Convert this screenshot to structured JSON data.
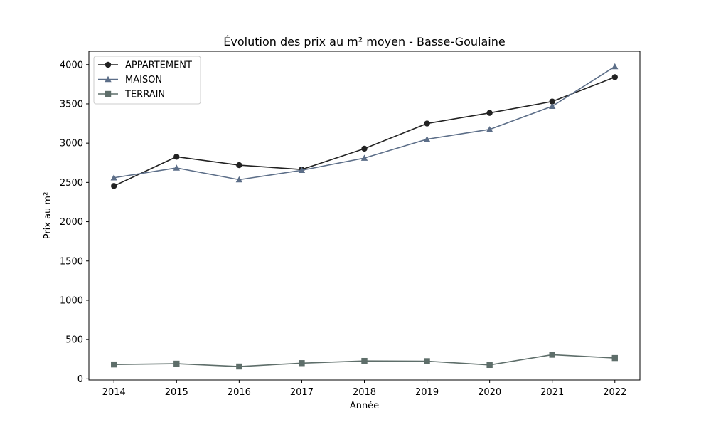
{
  "chart_data": {
    "type": "line",
    "title": "Évolution des prix au m² moyen - Basse-Goulaine",
    "xlabel": "Année",
    "ylabel": "Prix au m²",
    "x": [
      2014,
      2015,
      2016,
      2017,
      2018,
      2019,
      2020,
      2021,
      2022
    ],
    "xlim": [
      2013.6,
      2022.4
    ],
    "ylim": [
      -15,
      4170
    ],
    "yticks": [
      0,
      500,
      1000,
      1500,
      2000,
      2500,
      3000,
      3500,
      4000
    ],
    "grid": false,
    "legend_position": "top-left",
    "series": [
      {
        "name": "APPARTEMENT",
        "color": "#222222",
        "marker": "circle",
        "values": [
          2455,
          2827,
          2720,
          2665,
          2930,
          3250,
          3385,
          3530,
          3840
        ]
      },
      {
        "name": "MAISON",
        "color": "#5c6e88",
        "marker": "triangle",
        "values": [
          2560,
          2685,
          2535,
          2655,
          2810,
          3050,
          3175,
          3470,
          3975
        ]
      },
      {
        "name": "TERRAIN",
        "color": "#5e6e6a",
        "marker": "square",
        "values": [
          183,
          193,
          157,
          200,
          228,
          225,
          177,
          307,
          265
        ]
      }
    ]
  }
}
